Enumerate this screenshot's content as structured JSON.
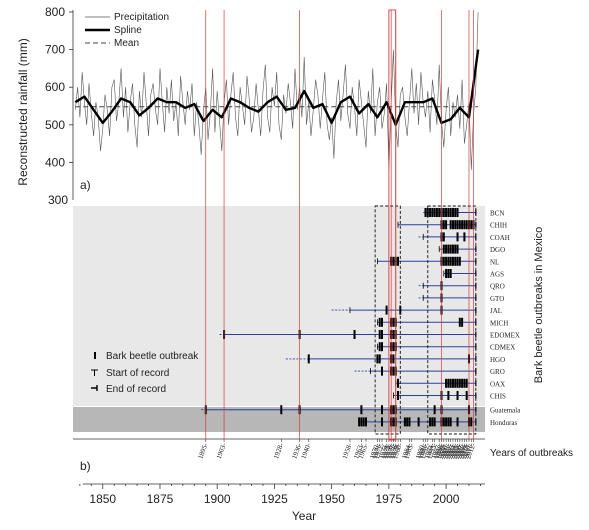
{
  "chart_data": [
    {
      "id": "a",
      "type": "line",
      "panel_label": "a)",
      "ylabel": "Reconstructed rainfall (mm)",
      "yticks": [
        300,
        400,
        500,
        600,
        700,
        800
      ],
      "ylim": [
        300,
        800
      ],
      "xlim": [
        1837,
        2017
      ],
      "mean": 548,
      "legend": {
        "placement": "top-left",
        "entries": [
          "Precipitation",
          "Spline",
          "Mean"
        ]
      },
      "spline": {
        "x": [
          1838,
          1842,
          1846,
          1850,
          1854,
          1858,
          1862,
          1866,
          1870,
          1874,
          1878,
          1882,
          1886,
          1890,
          1894,
          1898,
          1902,
          1906,
          1910,
          1914,
          1918,
          1922,
          1926,
          1930,
          1934,
          1938,
          1942,
          1946,
          1950,
          1954,
          1958,
          1962,
          1966,
          1970,
          1974,
          1978,
          1982,
          1986,
          1990,
          1994,
          1998,
          2002,
          2006,
          2010,
          2014
        ],
        "y": [
          560,
          575,
          540,
          505,
          535,
          570,
          560,
          525,
          545,
          570,
          560,
          560,
          545,
          555,
          510,
          540,
          520,
          570,
          560,
          545,
          535,
          560,
          575,
          540,
          545,
          590,
          545,
          555,
          505,
          560,
          575,
          530,
          555,
          520,
          560,
          500,
          560,
          560,
          560,
          570,
          505,
          515,
          545,
          520,
          700
        ]
      },
      "precipitation": {
        "x": [
          1838,
          1839,
          1840,
          1841,
          1842,
          1843,
          1844,
          1845,
          1846,
          1847,
          1848,
          1849,
          1850,
          1851,
          1852,
          1853,
          1854,
          1855,
          1856,
          1857,
          1858,
          1859,
          1860,
          1861,
          1862,
          1863,
          1864,
          1865,
          1866,
          1867,
          1868,
          1869,
          1870,
          1871,
          1872,
          1873,
          1874,
          1875,
          1876,
          1877,
          1878,
          1879,
          1880,
          1881,
          1882,
          1883,
          1884,
          1885,
          1886,
          1887,
          1888,
          1889,
          1890,
          1891,
          1892,
          1893,
          1894,
          1895,
          1896,
          1897,
          1898,
          1899,
          1900,
          1901,
          1902,
          1903,
          1904,
          1905,
          1906,
          1907,
          1908,
          1909,
          1910,
          1911,
          1912,
          1913,
          1914,
          1915,
          1916,
          1917,
          1918,
          1919,
          1920,
          1921,
          1922,
          1923,
          1924,
          1925,
          1926,
          1927,
          1928,
          1929,
          1930,
          1931,
          1932,
          1933,
          1934,
          1935,
          1936,
          1937,
          1938,
          1939,
          1940,
          1941,
          1942,
          1943,
          1944,
          1945,
          1946,
          1947,
          1948,
          1949,
          1950,
          1951,
          1952,
          1953,
          1954,
          1955,
          1956,
          1957,
          1958,
          1959,
          1960,
          1961,
          1962,
          1963,
          1964,
          1965,
          1966,
          1967,
          1968,
          1969,
          1970,
          1971,
          1972,
          1973,
          1974,
          1975,
          1976,
          1977,
          1978,
          1979,
          1980,
          1981,
          1982,
          1983,
          1984,
          1985,
          1986,
          1987,
          1988,
          1989,
          1990,
          1991,
          1992,
          1993,
          1994,
          1995,
          1996,
          1997,
          1998,
          1999,
          2000,
          2001,
          2002,
          2003,
          2004,
          2005,
          2006,
          2007,
          2008,
          2009,
          2010,
          2011,
          2012,
          2013,
          2014
        ],
        "y": [
          540,
          600,
          520,
          640,
          560,
          500,
          610,
          530,
          470,
          560,
          520,
          430,
          490,
          580,
          540,
          470,
          600,
          620,
          510,
          560,
          650,
          520,
          600,
          480,
          560,
          610,
          500,
          440,
          590,
          520,
          640,
          560,
          470,
          580,
          610,
          540,
          500,
          650,
          560,
          480,
          600,
          530,
          620,
          510,
          560,
          470,
          630,
          560,
          500,
          590,
          540,
          610,
          470,
          560,
          500,
          420,
          540,
          600,
          460,
          530,
          650,
          480,
          590,
          510,
          430,
          560,
          620,
          500,
          580,
          640,
          520,
          470,
          600,
          550,
          500,
          630,
          570,
          480,
          520,
          610,
          540,
          470,
          590,
          660,
          520,
          480,
          600,
          550,
          640,
          500,
          460,
          580,
          530,
          610,
          560,
          490,
          650,
          540,
          600,
          520,
          680,
          500,
          560,
          470,
          540,
          620,
          580,
          490,
          570,
          640,
          500,
          460,
          520,
          410,
          560,
          620,
          510,
          580,
          660,
          530,
          490,
          600,
          550,
          470,
          620,
          560,
          500,
          440,
          590,
          530,
          650,
          470,
          560,
          600,
          490,
          530,
          610,
          380,
          560,
          700,
          500,
          440,
          580,
          600,
          520,
          470,
          560,
          650,
          530,
          610,
          500,
          640,
          560,
          520,
          590,
          480,
          620,
          570,
          500,
          660,
          510,
          440,
          540,
          600,
          470,
          560,
          520,
          580,
          490,
          620,
          450,
          500,
          560,
          380,
          530,
          600,
          800
        ]
      }
    },
    {
      "id": "b",
      "type": "timeline",
      "panel_label": "b)",
      "ylabel": "Bark beetle outbreaks in Mexico",
      "xlabel": "Year",
      "xticks": [
        1850,
        1875,
        1900,
        1925,
        1950,
        1975,
        2000
      ],
      "xlim": [
        1837,
        2017
      ],
      "ylim_label": 300,
      "side_label": "Years of outbreaks",
      "legend": {
        "placement": "bottom-left",
        "entries": [
          "Bark beetle outbreak",
          "Start of record",
          "End of record"
        ]
      },
      "outbreak_year_labels": [
        "1895-",
        "1903-",
        "1928-",
        "1936-",
        "1940-",
        "1958-",
        "1963-",
        "1965-",
        "1970-",
        "1971-",
        "1972-",
        "1974-",
        "1975-",
        "1976-",
        "1977-",
        "1978-",
        "1979-",
        "1980-",
        "1984-",
        "1985-",
        "1990-",
        "1991-",
        "1992-",
        "1994-",
        "1995-",
        "1997-",
        "1998-",
        "1999-",
        "2000-",
        "2001-",
        "2002-",
        "2003-",
        "2004-",
        "2005-",
        "2006-",
        "2007-",
        "2008-",
        "2009-",
        "2010-",
        "2011-",
        "2012-"
      ],
      "red_lines": [
        1895,
        1903,
        1936,
        1976,
        1978,
        1998,
        2010,
        2012
      ],
      "dashed_boxes": [
        [
          1969,
          1980
        ],
        [
          1992,
          2013
        ]
      ],
      "red_box": [
        1975,
        1978
      ],
      "rows": [
        {
          "name": "BCN",
          "start": 1991,
          "end": 2013,
          "dashed_start": 1990,
          "outbreaks": [
            1991,
            1992,
            1993,
            1994,
            1995,
            1996,
            1997,
            1998,
            1999,
            2000,
            2001,
            2002,
            2003,
            2004,
            2005
          ]
        },
        {
          "name": "CHIH",
          "start": 1979,
          "end": 2013,
          "dashed_start": null,
          "outbreaks": [
            1998,
            1999,
            2000,
            2002,
            2003,
            2004,
            2005,
            2006,
            2007,
            2008,
            2009,
            2010,
            2011,
            2012
          ]
        },
        {
          "name": "COAH",
          "start": 1990,
          "end": 2013,
          "dashed_start": 1988,
          "outbreaks": [
            1998,
            1999,
            2005,
            2008
          ]
        },
        {
          "name": "DGO",
          "start": 1997,
          "end": 2013,
          "dashed_start": null,
          "outbreaks": [
            1999,
            2000,
            2001,
            2002,
            2003,
            2004,
            2005
          ]
        },
        {
          "name": "NL",
          "start": 1970,
          "end": 2013,
          "dashed_start": null,
          "outbreaks": [
            1976,
            1977,
            1978,
            1979,
            1998,
            1999,
            2000,
            2001,
            2002,
            2003,
            2004,
            2005,
            2006
          ]
        },
        {
          "name": "AGS",
          "start": 1999,
          "end": 2013,
          "dashed_start": null,
          "outbreaks": [
            2000,
            2001,
            2002
          ]
        },
        {
          "name": "QRO",
          "start": 1990,
          "end": 2013,
          "dashed_start": 1988,
          "outbreaks": [
            1998
          ]
        },
        {
          "name": "GTO",
          "start": 1990,
          "end": 2013,
          "dashed_start": 1988,
          "outbreaks": [
            1998
          ]
        },
        {
          "name": "JAL",
          "start": 1958,
          "end": 2013,
          "dashed_start": 1950,
          "outbreaks": [
            1974,
            1980,
            1998
          ]
        },
        {
          "name": "MICH",
          "start": 1970,
          "end": 2013,
          "dashed_start": null,
          "outbreaks": [
            1971,
            1972,
            1976,
            1977,
            1978,
            2006,
            2007
          ]
        },
        {
          "name": "EDOMEX",
          "start": 1903,
          "end": 2013,
          "dashed_start": 1901,
          "outbreaks": [
            1903,
            1936,
            1960,
            1971,
            1972,
            1976,
            1977,
            1978
          ]
        },
        {
          "name": "CDMEX",
          "start": 1970,
          "end": 2013,
          "dashed_start": null,
          "outbreaks": [
            1971,
            1972,
            1976,
            1977,
            1978
          ]
        },
        {
          "name": "HGO",
          "start": 1940,
          "end": 2013,
          "dashed_start": 1930,
          "outbreaks": [
            1940,
            1970,
            1971,
            1976,
            1977,
            2010
          ]
        },
        {
          "name": "GRO",
          "start": 1967,
          "end": 2013,
          "dashed_start": 1960,
          "outbreaks": [
            1972,
            1976,
            1977,
            1978
          ]
        },
        {
          "name": "OAX",
          "start": 1978,
          "end": 2013,
          "dashed_start": null,
          "outbreaks": [
            1979,
            2000,
            2001,
            2002,
            2003,
            2004,
            2005,
            2006,
            2007,
            2008,
            2009
          ]
        },
        {
          "name": "CHIS",
          "start": 1977,
          "end": 2013,
          "dashed_start": null,
          "outbreaks": [
            1979,
            1998,
            2001,
            2005,
            2009
          ]
        },
        {
          "name": "Guatemala",
          "start": 1895,
          "end": 2013,
          "dashed_start": 1893,
          "outbreaks": [
            1895,
            1928,
            1936,
            1963,
            1972,
            1976,
            1977,
            1978,
            1995,
            1998,
            2010
          ]
        },
        {
          "name": "Honduras",
          "start": 1962,
          "end": 2013,
          "dashed_start": null,
          "outbreaks": [
            1962,
            1963,
            1964,
            1965,
            1972,
            1976,
            1977,
            1978,
            1982,
            1983,
            1984,
            1988,
            1993,
            1994,
            1995,
            1998,
            1999,
            2000,
            2001,
            2002,
            2005,
            2010,
            2011
          ]
        }
      ]
    }
  ]
}
